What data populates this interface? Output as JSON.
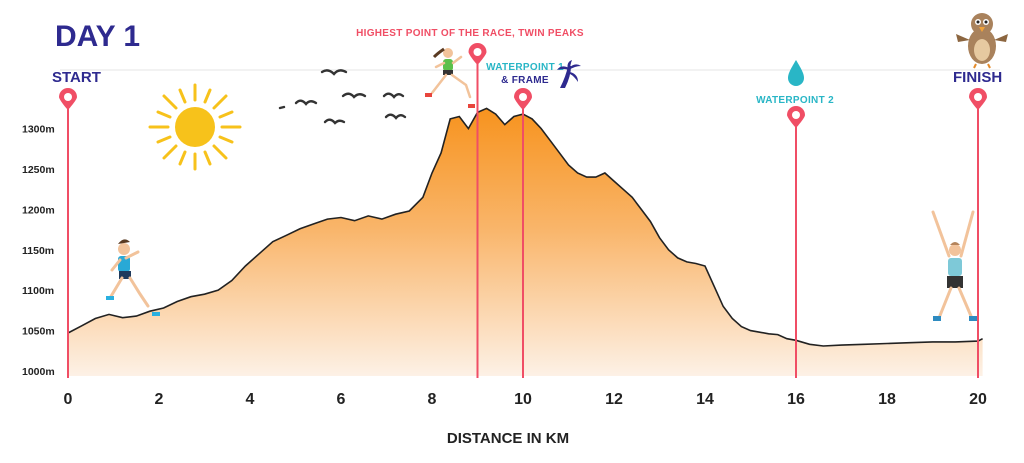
{
  "title": "DAY 1",
  "colors": {
    "title": "#2e2a8f",
    "pin": "#f04e65",
    "profile_top": "#f7931e",
    "profile_bottom": "#fdf1e6",
    "line": "#222222",
    "water": "#29b6c6",
    "sun": "#f7c21b",
    "highest_label": "#f04e65"
  },
  "icons": [
    "sun-icon",
    "birds-icon",
    "runner-icon",
    "water-drop-icon",
    "palm-frame-icon",
    "bird-mascot-icon"
  ],
  "chart_data": {
    "type": "area",
    "xlabel": "DISTANCE IN KM",
    "ylabel": "",
    "xlim": [
      0,
      20.5
    ],
    "ylim": [
      1000,
      1330
    ],
    "x_ticks": [
      "0",
      "2",
      "4",
      "6",
      "8",
      "10",
      "12",
      "14",
      "16",
      "18",
      "20"
    ],
    "y_ticks": [
      "1000m",
      "1050m",
      "1100m",
      "1150m",
      "1200m",
      "1250m",
      "1300m"
    ],
    "grid": false,
    "series": [
      {
        "x": [
          0,
          0.3,
          0.6,
          0.9,
          1.2,
          1.5,
          1.8,
          2.1,
          2.4,
          2.7,
          3.0,
          3.3,
          3.6,
          3.9,
          4.2,
          4.5,
          4.8,
          5.1,
          5.4,
          5.7,
          6.0,
          6.3,
          6.6,
          6.9,
          7.2,
          7.5,
          7.8,
          8.0,
          8.2,
          8.4,
          8.6,
          8.8,
          9.0,
          9.2,
          9.4,
          9.6,
          9.8,
          10.0,
          10.2,
          10.4,
          10.6,
          10.8,
          11.0,
          11.2,
          11.4,
          11.6,
          11.8,
          12.0,
          12.2,
          12.4,
          12.6,
          12.8,
          13.0,
          13.2,
          13.4,
          13.6,
          13.8,
          14.0,
          14.2,
          14.4,
          14.6,
          14.8,
          15.0,
          15.2,
          15.4,
          15.6,
          15.8,
          16.0,
          16.3,
          16.6,
          17.0,
          17.5,
          18.0,
          18.5,
          19.0,
          19.5,
          20.0,
          20.1
        ],
        "values": [
          1047,
          1056,
          1065,
          1070,
          1066,
          1068,
          1074,
          1078,
          1086,
          1092,
          1095,
          1100,
          1112,
          1130,
          1145,
          1160,
          1168,
          1176,
          1182,
          1188,
          1190,
          1186,
          1192,
          1188,
          1194,
          1198,
          1215,
          1245,
          1270,
          1312,
          1315,
          1300,
          1320,
          1325,
          1318,
          1305,
          1315,
          1318,
          1312,
          1300,
          1285,
          1270,
          1255,
          1245,
          1240,
          1240,
          1245,
          1235,
          1225,
          1215,
          1200,
          1185,
          1165,
          1150,
          1140,
          1135,
          1133,
          1130,
          1105,
          1080,
          1065,
          1055,
          1050,
          1048,
          1046,
          1045,
          1040,
          1038,
          1033,
          1031,
          1032,
          1033,
          1034,
          1035,
          1036,
          1036,
          1037,
          1040
        ]
      }
    ],
    "annotations": [
      {
        "x": 0,
        "label": "START"
      },
      {
        "x": 9,
        "label": "HIGHEST POINT OF THE RACE, TWIN PEAKS"
      },
      {
        "x": 10,
        "label": "WATERPOINT 1 & FRAME"
      },
      {
        "x": 16,
        "label": "WATERPOINT 2"
      },
      {
        "x": 20,
        "label": "FINISH"
      }
    ]
  },
  "labels": {
    "start": "START",
    "finish": "FINISH",
    "highest": "HIGHEST POINT OF THE RACE, TWIN PEAKS",
    "wp1_line1": "WATERPOINT 1",
    "wp1_line2": "& FRAME",
    "wp2": "WATERPOINT 2"
  }
}
